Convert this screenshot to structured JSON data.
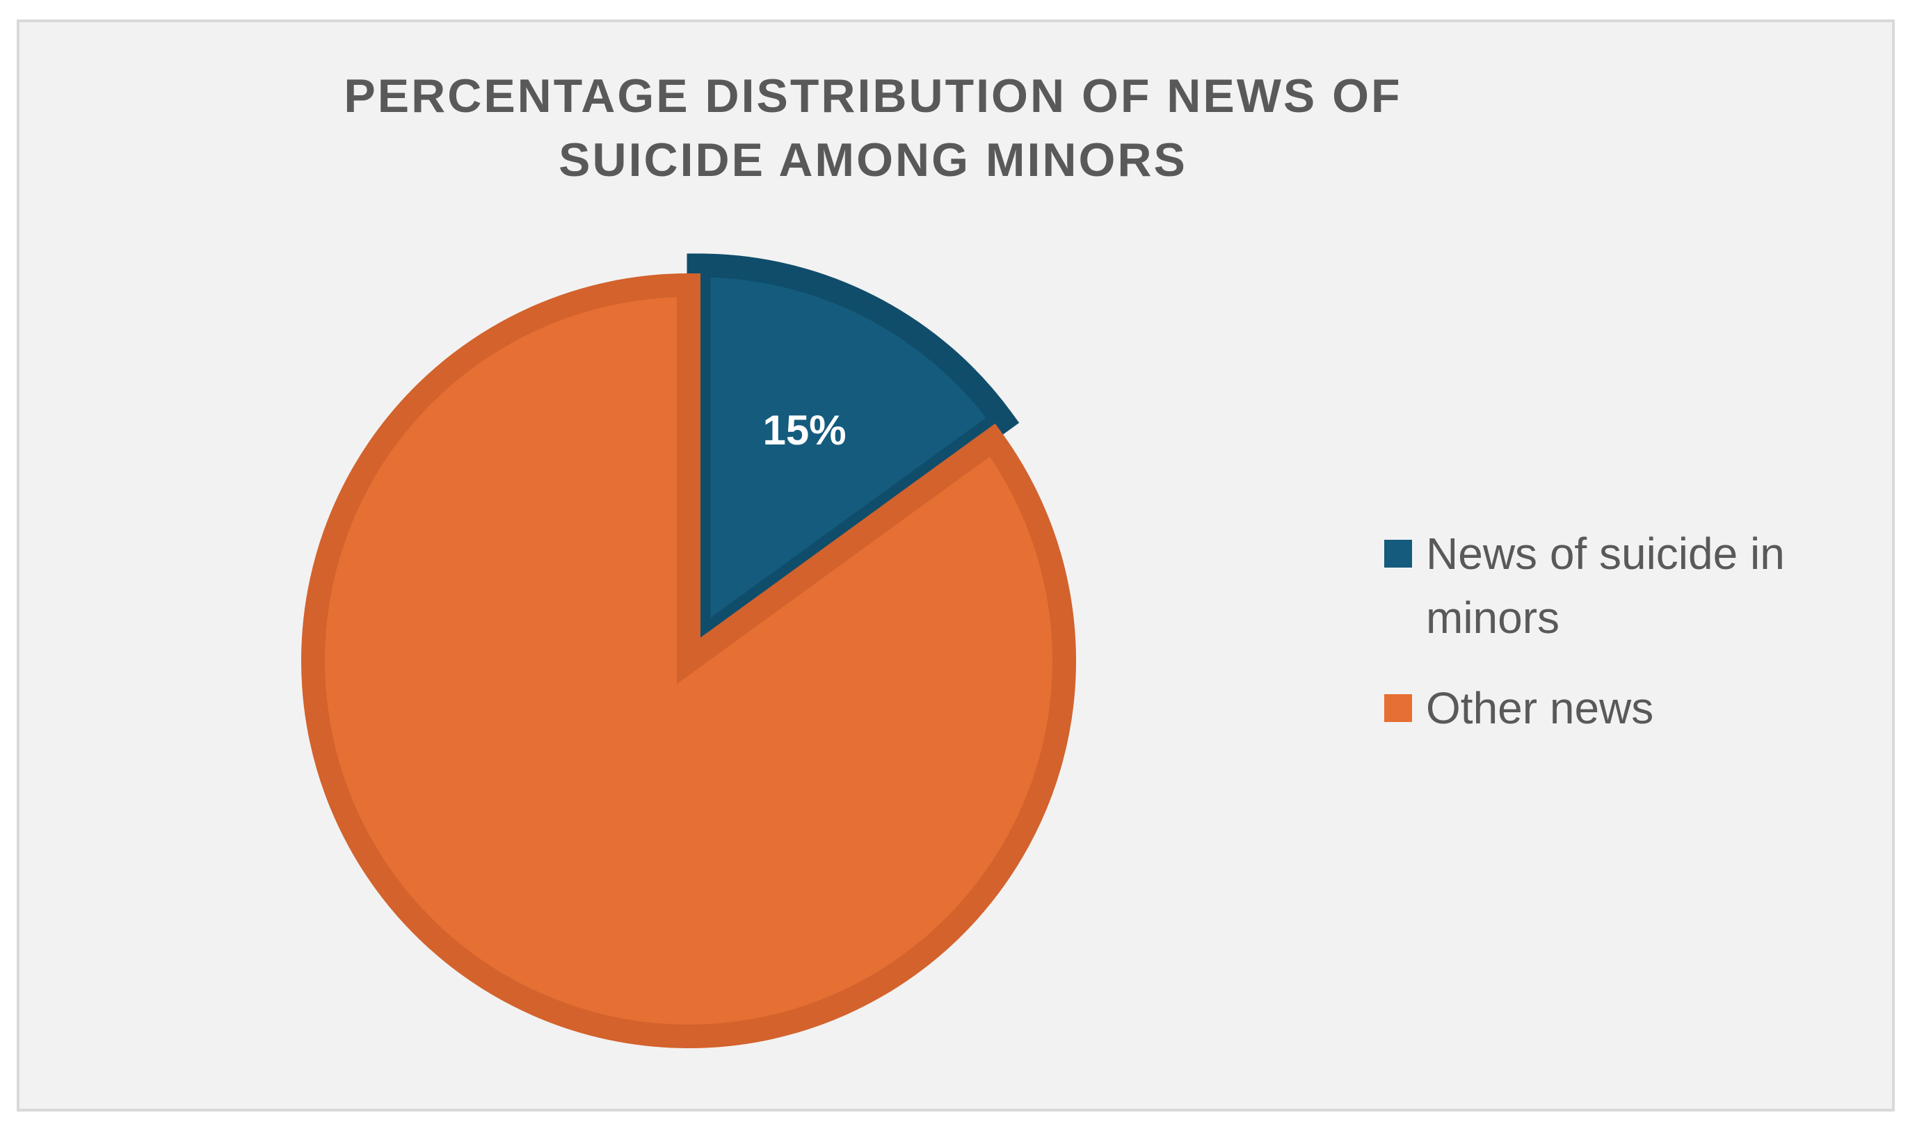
{
  "chart_data": {
    "type": "pie",
    "title": "PERCENTAGE DISTRIBUTION OF NEWS OF SUICIDE AMONG MINORS",
    "slices": [
      {
        "label": "News of suicide in minors",
        "value": 15,
        "data_label": "15%",
        "color": "#155b7d",
        "exploded": true
      },
      {
        "label": "Other news",
        "value": 85,
        "data_label": "",
        "color": "#e66f33"
      }
    ],
    "legend_position": "right",
    "start_angle_deg": 0,
    "direction": "clockwise"
  },
  "style": {
    "background": "#f2f2f2",
    "border_color": "#d9d9d9",
    "slice_outline_colors": [
      "#0f4d6b",
      "#d3622c"
    ]
  }
}
